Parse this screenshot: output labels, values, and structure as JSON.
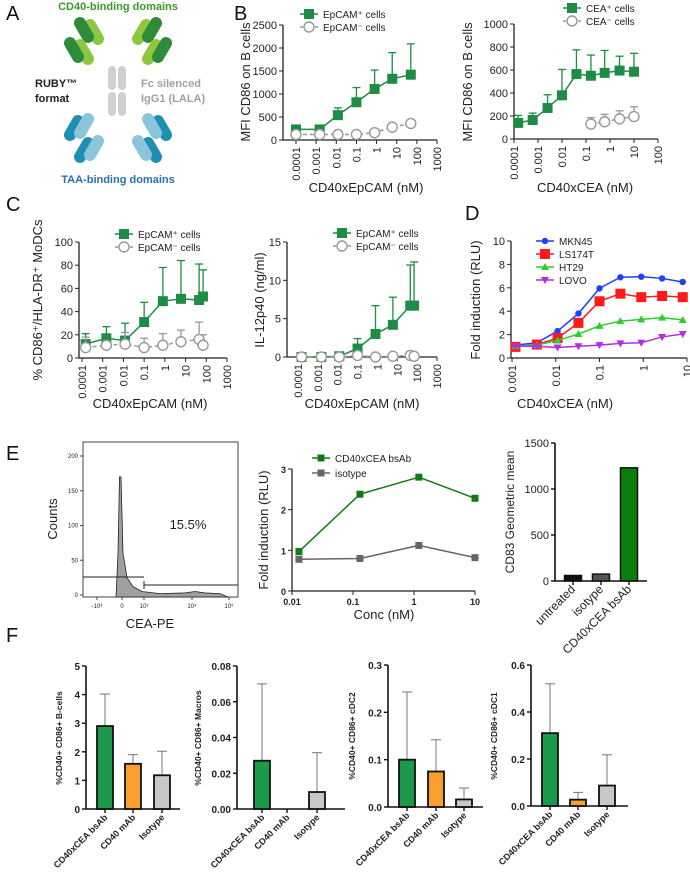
{
  "panels": [
    "A",
    "B",
    "C",
    "D",
    "E",
    "F"
  ],
  "panel_a": {
    "top_label": "CD40-binding domains",
    "format_line1": "RUBY™",
    "format_line2": "format",
    "fc_line1": "Fc silenced",
    "fc_line2": "IgG1 (LALA)",
    "bottom_label": "TAA-binding domains",
    "colors": {
      "cd40_light": "#8dc63f",
      "cd40_dark": "#2e8b3a",
      "fc": "#d0d0d0",
      "taa_light": "#8cc4dc",
      "taa_dark": "#1d8fb0",
      "top_text": "#3a9a2a",
      "bottom_text": "#2a6fb0",
      "fc_text": "#a0a0a0"
    }
  },
  "chart_data": [
    {
      "id": "B1",
      "type": "line",
      "xscale": "log",
      "xlim": [
        0.0001,
        1000
      ],
      "ylim": [
        0,
        2500
      ],
      "xlabel": "CD40xEpCAM (nM)",
      "ylabel": "MFI CD86 on B cells",
      "xticks": [
        "0.0001",
        "0.001",
        "0.01",
        "0.1",
        "1",
        "10",
        "100",
        "1000"
      ],
      "yticks": [
        "0",
        "500",
        "1000",
        "1500",
        "2000",
        "2500"
      ],
      "series": [
        {
          "name": "EpCAM⁺ cells",
          "color": "#1e8c45",
          "marker": "square",
          "dashed": false,
          "x": [
            0.0001,
            0.0015,
            0.012,
            0.1,
            0.8,
            6,
            50
          ],
          "y": [
            230,
            230,
            540,
            820,
            1110,
            1330,
            1420
          ],
          "err": [
            230,
            230,
            700,
            1140,
            1520,
            1900,
            2090
          ]
        },
        {
          "name": "EpCAM⁻ cells",
          "color": "#999999",
          "marker": "circle-open",
          "dashed": true,
          "x": [
            0.0001,
            0.0015,
            0.012,
            0.1,
            0.8,
            6,
            50
          ],
          "y": [
            120,
            120,
            120,
            120,
            160,
            280,
            360
          ],
          "err": [
            120,
            120,
            120,
            130,
            170,
            340,
            440
          ]
        }
      ]
    },
    {
      "id": "B2",
      "type": "line",
      "xscale": "log",
      "xlim": [
        0.0001,
        100
      ],
      "ylim": [
        0,
        1000
      ],
      "xlabel": "CD40xCEA (nM)",
      "ylabel": "MFI CD86 on B cells",
      "xticks": [
        "0.0001",
        "0.001",
        "0.01",
        "0.1",
        "1",
        "10",
        "100"
      ],
      "yticks": [
        "0",
        "200",
        "400",
        "600",
        "800",
        "1000"
      ],
      "series": [
        {
          "name": "CEA⁺ cells",
          "color": "#1e8c45",
          "marker": "square",
          "dashed": false,
          "x": [
            0.00015,
            0.0006,
            0.0025,
            0.01,
            0.04,
            0.16,
            0.6,
            2.5,
            10
          ],
          "y": [
            140,
            165,
            270,
            380,
            565,
            550,
            575,
            595,
            585
          ],
          "err": [
            205,
            225,
            385,
            605,
            775,
            730,
            770,
            720,
            745
          ]
        },
        {
          "name": "CEA⁻ cells",
          "color": "#999999",
          "marker": "circle-open",
          "dashed": true,
          "x": [
            0.16,
            0.6,
            2.5,
            10
          ],
          "y": [
            130,
            150,
            175,
            195
          ],
          "err": [
            185,
            215,
            245,
            280
          ]
        }
      ]
    },
    {
      "id": "C1",
      "type": "line",
      "xscale": "log",
      "xlim": [
        0.0001,
        1000
      ],
      "ylim": [
        0,
        100
      ],
      "xlabel": "CD40xEpCAM (nM)",
      "ylabel": "% CD86⁺/HLA-DR⁺ MoDCs",
      "xticks": [
        "0.0001",
        "0.001",
        "0.01",
        "0.1",
        "1",
        "10",
        "100",
        "1000"
      ],
      "yticks": [
        "0",
        "20",
        "40",
        "60",
        "80",
        "100"
      ],
      "series": [
        {
          "name": "EpCAM⁺ cells",
          "color": "#1e8c45",
          "marker": "square",
          "dashed": false,
          "x": [
            0.00015,
            0.0015,
            0.012,
            0.1,
            0.8,
            6,
            45,
            70
          ],
          "y": [
            12,
            17,
            15,
            31,
            49,
            51,
            50,
            53
          ],
          "err": [
            21,
            27,
            30,
            48,
            78,
            84,
            81,
            76
          ]
        },
        {
          "name": "EpCAM⁻ cells",
          "color": "#999999",
          "marker": "circle-open",
          "dashed": true,
          "x": [
            0.00015,
            0.0015,
            0.012,
            0.1,
            0.8,
            6,
            45,
            70
          ],
          "y": [
            9,
            11,
            12,
            9,
            11,
            14,
            16,
            11
          ],
          "err": [
            18,
            13,
            22,
            17,
            21,
            24,
            31,
            20
          ]
        }
      ]
    },
    {
      "id": "C2",
      "type": "line",
      "xscale": "log",
      "xlim": [
        0.0001,
        1000
      ],
      "ylim": [
        0,
        15
      ],
      "xlabel": "CD40xEpCAM (nM)",
      "ylabel": "IL-12p40 (ng/ml)",
      "xticks": [
        "0.0001",
        "0.001",
        "0.01",
        "0.1",
        "1",
        "10",
        "100",
        "1000"
      ],
      "yticks": [
        "0",
        "5",
        "10",
        "15"
      ],
      "series": [
        {
          "name": "EpCAM⁺ cells",
          "color": "#1e8c45",
          "marker": "square",
          "dashed": false,
          "x": [
            0.00015,
            0.0015,
            0.012,
            0.1,
            0.8,
            6,
            45,
            70
          ],
          "y": [
            0,
            0,
            0.1,
            1.1,
            3,
            4.2,
            6.7,
            6.7
          ],
          "err": [
            0,
            0,
            0.1,
            2.4,
            6.7,
            7.8,
            12,
            12.4
          ]
        },
        {
          "name": "EpCAM⁻ cells",
          "color": "#999999",
          "marker": "circle-open",
          "dashed": true,
          "x": [
            0.00015,
            0.0015,
            0.012,
            0.1,
            0.8,
            6,
            45,
            70
          ],
          "y": [
            0,
            0,
            0,
            0.2,
            0,
            0.1,
            0.2,
            0.1
          ]
        }
      ]
    },
    {
      "id": "D",
      "type": "line",
      "xscale": "log",
      "xlim": [
        0.001,
        10
      ],
      "ylim": [
        0,
        10
      ],
      "xlabel": "CD40xCEA (nM)",
      "ylabel": "Fold induction (RLU)",
      "xticks": [
        "0.001",
        "0.01",
        "0.1",
        "1",
        "10"
      ],
      "yticks": [
        "0",
        "2",
        "4",
        "6",
        "8",
        "10"
      ],
      "series": [
        {
          "name": "MKN45",
          "color": "#1f3fff",
          "marker": "circle",
          "dashed": false,
          "x": [
            0.0012,
            0.0037,
            0.011,
            0.033,
            0.1,
            0.3,
            0.9,
            2.7,
            8
          ],
          "y": [
            1.1,
            1.3,
            2.3,
            3.8,
            5.95,
            6.9,
            6.95,
            6.8,
            6.5
          ]
        },
        {
          "name": "LS174T",
          "color": "#ff1a1a",
          "marker": "square",
          "dashed": false,
          "x": [
            0.0012,
            0.0037,
            0.011,
            0.033,
            0.1,
            0.3,
            0.9,
            2.7,
            8
          ],
          "y": [
            0.95,
            1.15,
            1.7,
            3.0,
            4.85,
            5.5,
            5.2,
            5.3,
            5.2
          ]
        },
        {
          "name": "HT29",
          "color": "#2ecc2e",
          "marker": "triangle",
          "dashed": false,
          "x": [
            0.0012,
            0.0037,
            0.011,
            0.033,
            0.1,
            0.3,
            0.9,
            2.7,
            8
          ],
          "y": [
            1.0,
            1.1,
            1.5,
            2.05,
            2.75,
            3.15,
            3.3,
            3.45,
            3.25
          ]
        },
        {
          "name": "LOVO",
          "color": "#b12fe0",
          "marker": "triangle-down",
          "dashed": false,
          "x": [
            0.0012,
            0.0037,
            0.011,
            0.033,
            0.1,
            0.3,
            0.9,
            2.7,
            8
          ],
          "y": [
            1.0,
            1.0,
            0.9,
            1.0,
            1.1,
            1.25,
            1.3,
            1.8,
            2.05
          ]
        }
      ]
    },
    {
      "id": "E_hist",
      "type": "histogram",
      "xlabel": "CEA-PE",
      "ylabel": "Counts",
      "annotation": "15.5%",
      "xticks": [
        "-10³",
        "0",
        "10³",
        "10⁴",
        "10⁵"
      ],
      "yticks": [
        "0",
        "50",
        "100",
        "150",
        "200"
      ],
      "ylim": [
        0,
        200
      ],
      "peak_count": 170,
      "color": "#a0a0a0"
    },
    {
      "id": "E_line",
      "type": "line",
      "xscale": "log",
      "xlim": [
        0.01,
        10
      ],
      "ylim": [
        0,
        3
      ],
      "xlabel": "Conc (nM)",
      "ylabel": "Fold induction (RLU)",
      "xticks": [
        "0.01",
        "0.1",
        "1",
        "10"
      ],
      "yticks": [
        "0",
        "1",
        "2",
        "3"
      ],
      "series": [
        {
          "name": "CD40xCEA bsAb",
          "color": "#157a15",
          "marker": "square-small",
          "dashed": false,
          "x": [
            0.013,
            0.13,
            1.2,
            10
          ],
          "y": [
            0.97,
            2.38,
            2.8,
            2.28
          ]
        },
        {
          "name": "isotype",
          "color": "#666666",
          "marker": "square-small",
          "dashed": false,
          "x": [
            0.013,
            0.13,
            1.2,
            10
          ],
          "y": [
            0.78,
            0.8,
            1.12,
            0.82
          ]
        }
      ]
    },
    {
      "id": "E_bar",
      "type": "bar",
      "ylim": [
        0,
        1500
      ],
      "ylabel": "CD83 Geometric mean",
      "categories": [
        "untreated",
        "isotype",
        "CD40xCEA bsAb"
      ],
      "values": [
        60,
        75,
        1230
      ],
      "colors": [
        "#111111",
        "#555555",
        "#0a7d0a"
      ],
      "yticks": [
        "0",
        "500",
        "1000",
        "1500"
      ]
    },
    {
      "id": "F1",
      "type": "bar",
      "ylim": [
        0,
        5
      ],
      "ylabel": "%CD40+ CD86+ B-cells",
      "categories": [
        "CD40xCEA bsAb",
        "CD40 mAb",
        "Isotype"
      ],
      "values": [
        2.9,
        1.58,
        1.18
      ],
      "err": [
        4.02,
        1.9,
        2.02
      ],
      "colors": [
        "#1a9a4a",
        "#f7a030",
        "#c8c8c8"
      ],
      "yticks": [
        "0",
        "1",
        "2",
        "3",
        "4",
        "5"
      ]
    },
    {
      "id": "F2",
      "type": "bar",
      "ylim": [
        0,
        0.08
      ],
      "ylabel": "%CD40+ CD86+ Macros",
      "categories": [
        "CD40xCEA bsAb",
        "CD40 mAb",
        "Isotype"
      ],
      "values": [
        0.027,
        0,
        0.0095
      ],
      "err": [
        0.07,
        null,
        0.0315
      ],
      "colors": [
        "#1a9a4a",
        "#f7a030",
        "#c8c8c8"
      ],
      "yticks": [
        "0.00",
        "0.02",
        "0.04",
        "0.06",
        "0.08"
      ]
    },
    {
      "id": "F3",
      "type": "bar",
      "ylim": [
        0,
        0.3
      ],
      "ylabel": "%CD40+ CD86+ cDC2",
      "categories": [
        "CD40xCEA bsAb",
        "CD40 mAb",
        "Isotype"
      ],
      "values": [
        0.1,
        0.075,
        0.016
      ],
      "err": [
        0.243,
        0.142,
        0.04
      ],
      "colors": [
        "#1a9a4a",
        "#f7a030",
        "#c8c8c8"
      ],
      "yticks": [
        "0.0",
        "0.1",
        "0.2",
        "0.3"
      ]
    },
    {
      "id": "F4",
      "type": "bar",
      "ylim": [
        0,
        0.6
      ],
      "ylabel": "%CD40+ CD86+ cDC1",
      "categories": [
        "CD40xCEA bsAb",
        "CD40 mAb",
        "Isotype"
      ],
      "values": [
        0.31,
        0.027,
        0.087
      ],
      "err": [
        0.52,
        0.058,
        0.218
      ],
      "colors": [
        "#1a9a4a",
        "#f7a030",
        "#c8c8c8"
      ],
      "yticks": [
        "0.0",
        "0.2",
        "0.4",
        "0.6"
      ]
    }
  ]
}
